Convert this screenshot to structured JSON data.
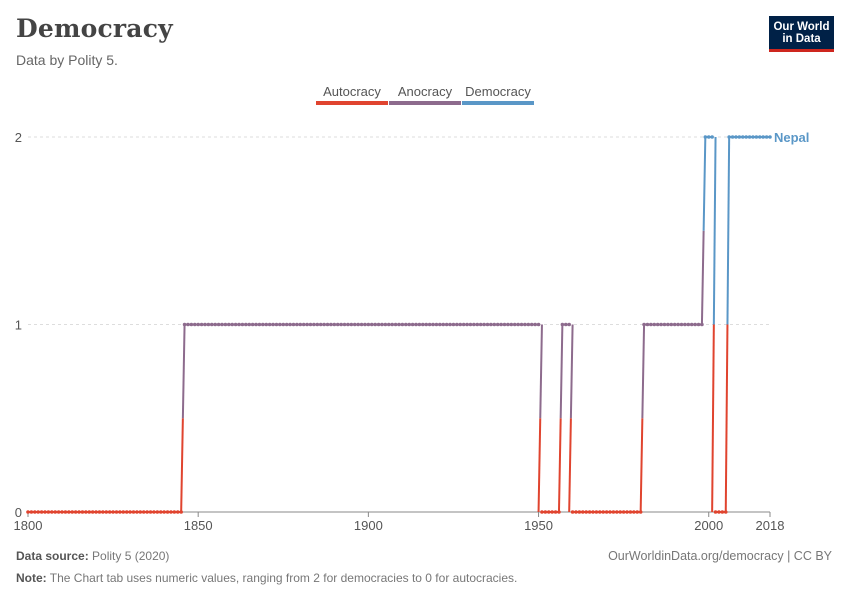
{
  "header": {
    "title": "Democracy",
    "subtitle": "Data by Polity 5.",
    "logo_line1": "Our World",
    "logo_line2": "in Data"
  },
  "footer": {
    "source_label": "Data source:",
    "source_value": "Polity 5 (2020)",
    "link_text": "OurWorldinData.org/democracy",
    "license": " | CC BY",
    "note_label": "Note:",
    "note_text": "The Chart tab uses numeric values, ranging from 2 for democracies to 0 for autocracies."
  },
  "colors": {
    "autocracy": "#e0442f",
    "anocracy": "#8d6b8d",
    "democracy": "#5a97c7",
    "grid": "#dddddd",
    "axis": "#888888",
    "label_text": "#555555"
  },
  "chart_data": {
    "type": "line",
    "legend": [
      {
        "name": "Autocracy",
        "color": "#e0442f"
      },
      {
        "name": "Anocracy",
        "color": "#8d6b8d"
      },
      {
        "name": "Democracy",
        "color": "#5a97c7"
      }
    ],
    "legend_position": "top-center",
    "x_ticks": [
      "1800",
      "1850",
      "1900",
      "1950",
      "2000",
      "2018"
    ],
    "y_ticks": [
      "0",
      "1",
      "2"
    ],
    "xlim": [
      1800,
      2018
    ],
    "ylim": [
      0,
      2
    ],
    "grid": "horizontal dashed",
    "series": [
      {
        "name": "Nepal",
        "segments": [
          {
            "from": 1800,
            "to": 1845,
            "value": 0
          },
          {
            "from": 1846,
            "to": 1950,
            "value": 1
          },
          {
            "from": 1951,
            "to": 1956,
            "value": 0
          },
          {
            "from": 1957,
            "to": 1959,
            "value": 1
          },
          {
            "from": 1960,
            "to": 1980,
            "value": 0
          },
          {
            "from": 1981,
            "to": 1998,
            "value": 1
          },
          {
            "from": 1999,
            "to": 2001,
            "value": 2
          },
          {
            "from": 2002,
            "to": 2005,
            "value": 0
          },
          {
            "from": 2006,
            "to": 2018,
            "value": 2
          }
        ]
      }
    ]
  }
}
